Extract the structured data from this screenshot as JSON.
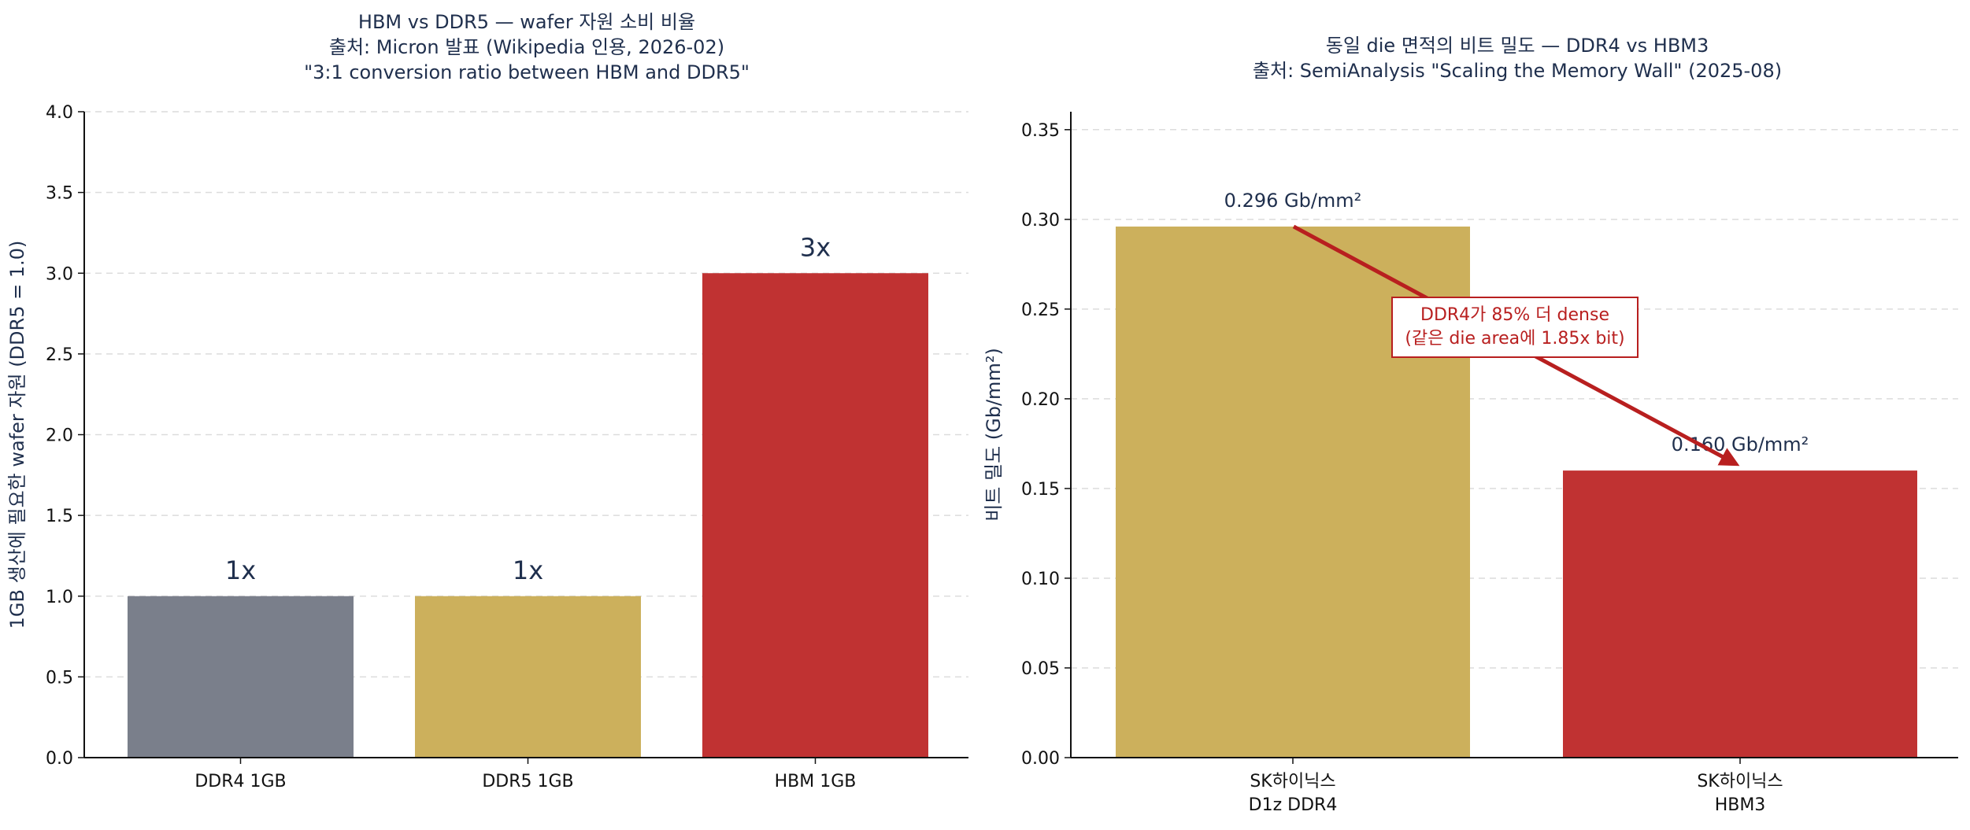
{
  "colors": {
    "title": "#1f2f4d",
    "axis": "#111111",
    "grid": "#dcdcdc",
    "gray": "#7a7f8b",
    "gold": "#ccb05c",
    "red": "#c03232",
    "annot": "#b81f1f"
  },
  "chart_data": [
    {
      "type": "bar",
      "title_lines": [
        "HBM vs DDR5 — wafer 자원 소비 비율",
        "출처: Micron 발표 (Wikipedia 인용, 2026-02)",
        "\"3:1 conversion ratio between HBM and DDR5\""
      ],
      "xlabel": "",
      "ylabel": "1GB 생산에 필요한 wafer 자원 (DDR5 = 1.0)",
      "categories": [
        [
          "DDR4 1GB"
        ],
        [
          "DDR5 1GB"
        ],
        [
          "HBM 1GB"
        ]
      ],
      "values": [
        1.0,
        1.0,
        3.0
      ],
      "data_labels": [
        "1x",
        "1x",
        "3x"
      ],
      "bar_colors": [
        "gray",
        "gold",
        "red"
      ],
      "ylim": [
        0,
        4.0
      ],
      "yticks": [
        0,
        0.5,
        1.0,
        1.5,
        2.0,
        2.5,
        3.0,
        3.5,
        4.0
      ],
      "ytick_labels": [
        "0.0",
        "0.5",
        "1.0",
        "1.5",
        "2.0",
        "2.5",
        "3.0",
        "3.5",
        "4.0"
      ],
      "grid": true
    },
    {
      "type": "bar",
      "title_lines": [
        "동일 die 면적의 비트 밀도 — DDR4 vs HBM3",
        "출처: SemiAnalysis \"Scaling the Memory Wall\" (2025-08)"
      ],
      "xlabel": "",
      "ylabel": "비트 밀도 (Gb/mm²)",
      "categories": [
        [
          "SK하이닉스",
          "D1z DDR4"
        ],
        [
          "SK하이닉스",
          "HBM3"
        ]
      ],
      "values": [
        0.296,
        0.16
      ],
      "data_labels": [
        "0.296 Gb/mm²",
        "0.160 Gb/mm²"
      ],
      "bar_colors": [
        "gold",
        "red"
      ],
      "ylim": [
        0,
        0.36
      ],
      "yticks": [
        0,
        0.05,
        0.1,
        0.15,
        0.2,
        0.25,
        0.3,
        0.35
      ],
      "ytick_labels": [
        "0.00",
        "0.05",
        "0.10",
        "0.15",
        "0.20",
        "0.25",
        "0.30",
        "0.35"
      ],
      "grid": true,
      "annotation": {
        "lines": [
          "DDR4가 85% 더 dense",
          "(같은 die area에 1.85x bit)"
        ],
        "arrow_from": {
          "category": 0,
          "value": 0.296
        },
        "arrow_to": {
          "category": 1,
          "value": 0.161
        }
      }
    }
  ]
}
